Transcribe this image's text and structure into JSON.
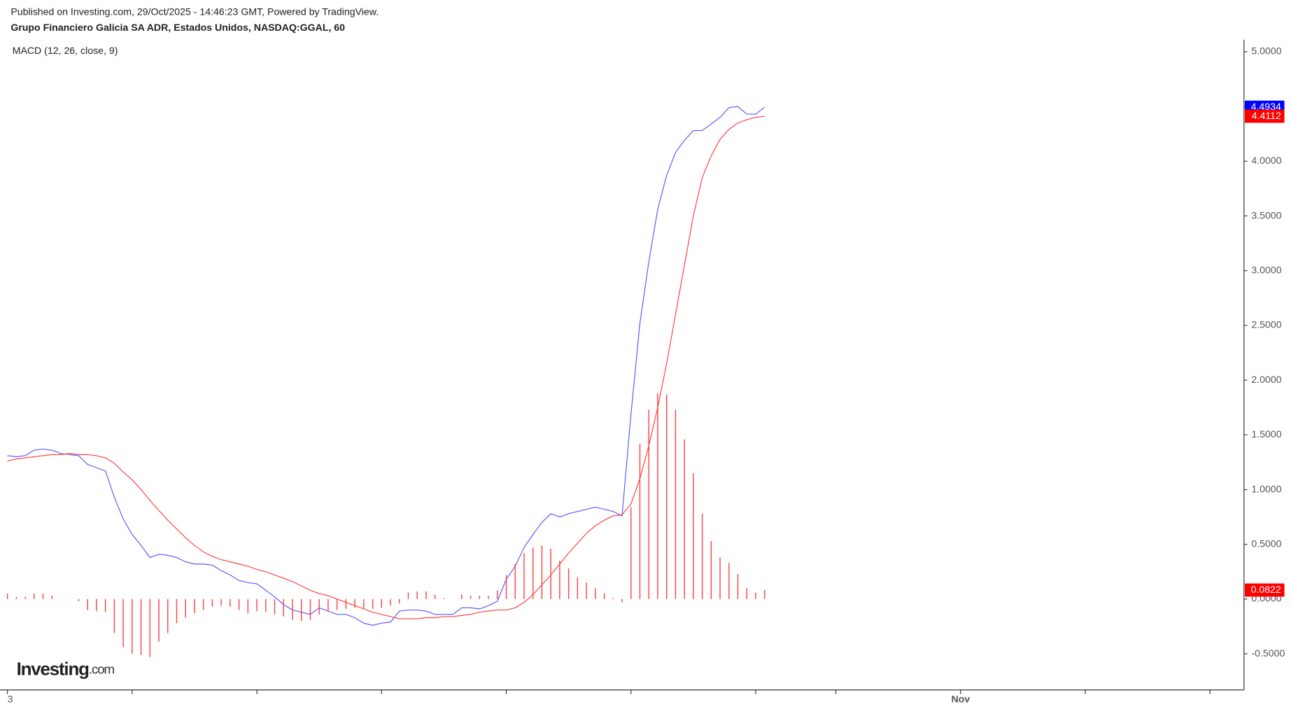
{
  "header": {
    "published": "Published on Investing.com, 29/Oct/2025 - 14:46:23 GMT, Powered by TradingView.",
    "instrument": "Grupo Financiero Galicia SA ADR, Estados Unidos, NASDAQ:GGAL, 60",
    "logo_main": "Investing",
    "logo_suffix": ".com"
  },
  "chart_data": {
    "type": "line",
    "title": "MACD (12, 26, close, 9)",
    "xlim": [
      0,
      139
    ],
    "xticks": [
      {
        "value": 0,
        "label": "3"
      },
      {
        "value": 107,
        "label": "Nov"
      }
    ],
    "xminorticks": [
      14,
      28,
      42,
      56,
      70,
      84,
      93,
      121,
      135
    ],
    "ylim": [
      -0.83,
      5.11
    ],
    "yticks": [
      {
        "value": -0.5,
        "label": "-0.5000"
      },
      {
        "value": 0,
        "label": "0.0000"
      },
      {
        "value": 0.5,
        "label": "0.5000"
      },
      {
        "value": 1,
        "label": "1.0000"
      },
      {
        "value": 1.5,
        "label": "1.5000"
      },
      {
        "value": 2,
        "label": "2.0000"
      },
      {
        "value": 2.5,
        "label": "2.5000"
      },
      {
        "value": 3,
        "label": "3.0000"
      },
      {
        "value": 3.5,
        "label": "3.5000"
      },
      {
        "value": 4,
        "label": "4.0000"
      },
      {
        "value": 4.5,
        "label": "4.5000"
      },
      {
        "value": 5,
        "label": "5.0000"
      }
    ],
    "series": [
      {
        "color": "#5a5aff",
        "kind": "line",
        "values": [
          1.31,
          1.3,
          1.31,
          1.36,
          1.37,
          1.36,
          1.33,
          1.32,
          1.31,
          1.23,
          1.2,
          1.17,
          0.93,
          0.73,
          0.59,
          0.49,
          0.38,
          0.41,
          0.4,
          0.38,
          0.34,
          0.32,
          0.32,
          0.31,
          0.26,
          0.22,
          0.17,
          0.15,
          0.14,
          0.08,
          0.02,
          -0.05,
          -0.1,
          -0.12,
          -0.14,
          -0.08,
          -0.11,
          -0.14,
          -0.14,
          -0.17,
          -0.22,
          -0.24,
          -0.22,
          -0.21,
          -0.11,
          -0.1,
          -0.1,
          -0.11,
          -0.14,
          -0.14,
          -0.14,
          -0.08,
          -0.08,
          -0.09,
          -0.06,
          -0.02,
          0.18,
          0.3,
          0.47,
          0.59,
          0.7,
          0.78,
          0.75,
          0.78,
          0.8,
          0.82,
          0.84,
          0.82,
          0.8,
          0.76,
          1.69,
          2.52,
          3.08,
          3.56,
          3.87,
          4.08,
          4.19,
          4.28,
          4.28,
          4.34,
          4.4,
          4.49,
          4.5,
          4.43,
          4.43,
          4.4934
        ]
      },
      {
        "color": "#ff4040",
        "kind": "line",
        "values": [
          1.26,
          1.28,
          1.29,
          1.3,
          1.31,
          1.32,
          1.32,
          1.33,
          1.32,
          1.32,
          1.31,
          1.29,
          1.24,
          1.16,
          1.09,
          1.0,
          0.9,
          0.81,
          0.72,
          0.64,
          0.56,
          0.49,
          0.43,
          0.39,
          0.36,
          0.34,
          0.32,
          0.3,
          0.27,
          0.25,
          0.22,
          0.19,
          0.16,
          0.12,
          0.08,
          0.05,
          0.03,
          0.0,
          -0.03,
          -0.06,
          -0.09,
          -0.12,
          -0.14,
          -0.16,
          -0.18,
          -0.18,
          -0.18,
          -0.17,
          -0.17,
          -0.16,
          -0.16,
          -0.15,
          -0.14,
          -0.12,
          -0.11,
          -0.1,
          -0.1,
          -0.08,
          -0.03,
          0.04,
          0.13,
          0.22,
          0.32,
          0.42,
          0.51,
          0.6,
          0.67,
          0.72,
          0.76,
          0.77,
          0.87,
          1.1,
          1.4,
          1.75,
          2.15,
          2.6,
          3.05,
          3.5,
          3.85,
          4.05,
          4.2,
          4.29,
          4.35,
          4.38,
          4.4,
          4.4112
        ]
      },
      {
        "color": "#ff4040",
        "kind": "histogram",
        "values": [
          0.05,
          0.02,
          0.02,
          0.05,
          0.05,
          0.03,
          0.0,
          0.0,
          -0.02,
          -0.1,
          -0.11,
          -0.12,
          -0.31,
          -0.44,
          -0.5,
          -0.51,
          -0.53,
          -0.39,
          -0.31,
          -0.22,
          -0.17,
          -0.13,
          -0.1,
          -0.07,
          -0.06,
          -0.07,
          -0.1,
          -0.13,
          -0.11,
          -0.12,
          -0.14,
          -0.16,
          -0.19,
          -0.2,
          -0.19,
          -0.14,
          -0.11,
          -0.1,
          -0.09,
          -0.08,
          -0.09,
          -0.09,
          -0.08,
          -0.06,
          -0.04,
          0.06,
          0.07,
          0.07,
          0.04,
          0.01,
          0.0,
          0.04,
          0.03,
          0.03,
          0.03,
          0.08,
          0.22,
          0.32,
          0.42,
          0.47,
          0.49,
          0.46,
          0.35,
          0.28,
          0.2,
          0.15,
          0.1,
          0.05,
          0.01,
          -0.03,
          0.84,
          1.42,
          1.73,
          1.88,
          1.87,
          1.73,
          1.46,
          1.15,
          0.78,
          0.53,
          0.38,
          0.33,
          0.23,
          0.1,
          0.06,
          0.0822
        ]
      }
    ]
  }
}
